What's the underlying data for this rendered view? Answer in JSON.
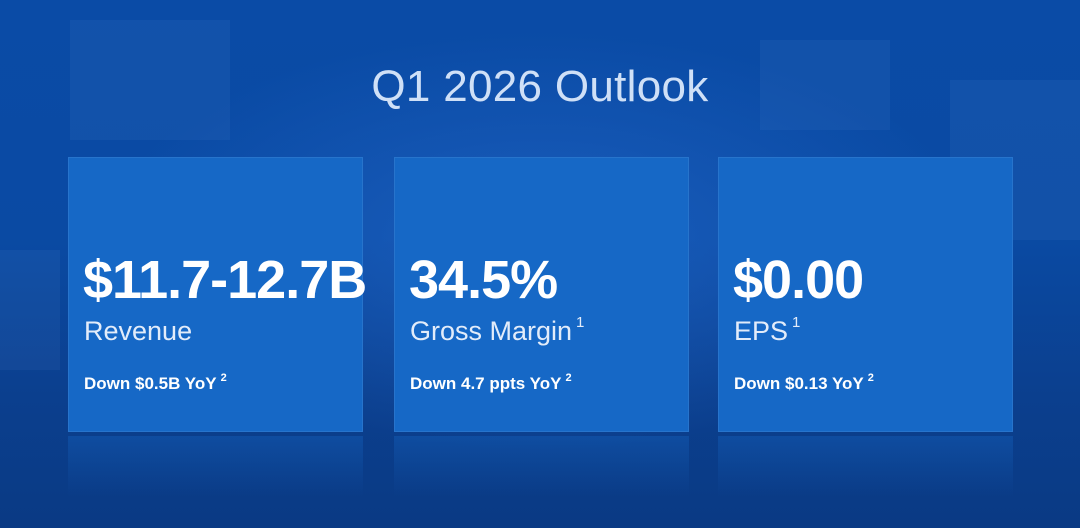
{
  "title": "Q1 2026 Outlook",
  "cards": [
    {
      "value": "$11.7-12.7B",
      "label": "Revenue",
      "label_footnote": "",
      "change": "Down $0.5B YoY",
      "change_footnote": "2"
    },
    {
      "value": "34.5%",
      "label": "Gross Margin",
      "label_footnote": "1",
      "change": "Down 4.7 ppts YoY",
      "change_footnote": "2"
    },
    {
      "value": "$0.00",
      "label": "EPS",
      "label_footnote": "1",
      "change": "Down $0.13 YoY",
      "change_footnote": "2"
    }
  ],
  "colors": {
    "background": "#0b3f93",
    "card": "#1668c6",
    "title": "#cfe0f7",
    "text": "#ffffff"
  }
}
